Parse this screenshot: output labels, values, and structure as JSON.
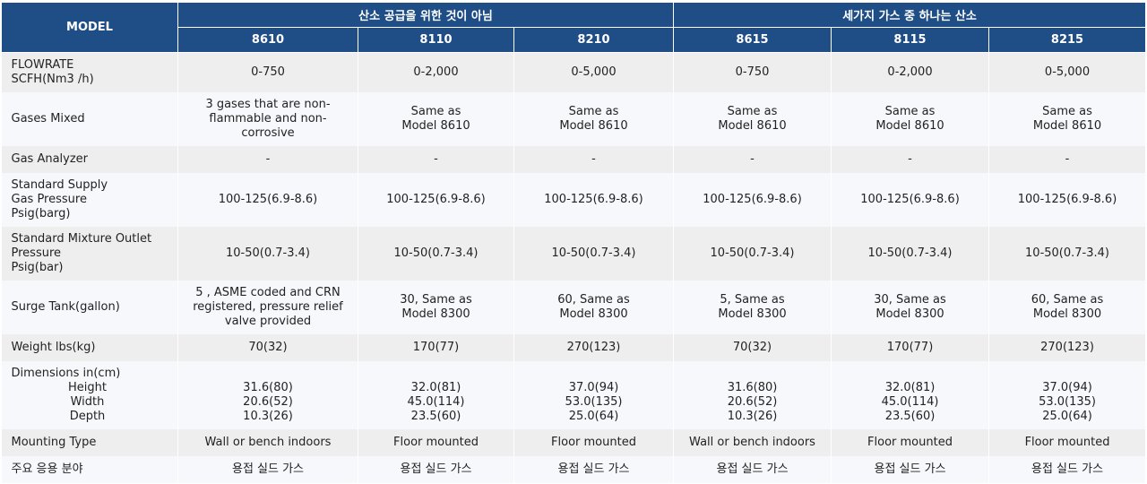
{
  "header": {
    "model_label": "MODEL",
    "groups": [
      "산소 공급을 위한 것이 아님",
      "세가지 가스 중 하나는 산소"
    ],
    "models": [
      "8610",
      "8110",
      "8210",
      "8615",
      "8115",
      "8215"
    ]
  },
  "rows": [
    {
      "label": "FLOWRATE\nSCFH(Nm3 /h)",
      "values": [
        "0-750",
        "0-2,000",
        "0-5,000",
        "0-750",
        "0-2,000",
        "0-5,000"
      ]
    },
    {
      "label": "Gases Mixed",
      "values": [
        "3 gases that are non-\nflammable and non-\ncorrosive",
        "Same as\nModel 8610",
        "Same as\nModel 8610",
        "Same as\nModel 8610",
        "Same as\nModel 8610",
        "Same as\nModel 8610"
      ]
    },
    {
      "label": "Gas Analyzer",
      "values": [
        "-",
        "-",
        "-",
        "-",
        "-",
        "-"
      ]
    },
    {
      "label": "Standard Supply\nGas Pressure\nPsig(barg)",
      "values": [
        "100-125(6.9-8.6)",
        "100-125(6.9-8.6)",
        "100-125(6.9-8.6)",
        "100-125(6.9-8.6)",
        "100-125(6.9-8.6)",
        "100-125(6.9-8.6)"
      ]
    },
    {
      "label": "Standard Mixture Outlet\nPressure\nPsig(bar)",
      "values": [
        "10-50(0.7-3.4)",
        "10-50(0.7-3.4)",
        "10-50(0.7-3.4)",
        "10-50(0.7-3.4)",
        "10-50(0.7-3.4)",
        "10-50(0.7-3.4)"
      ]
    },
    {
      "label": "Surge Tank(gallon)",
      "values": [
        "5 , ASME coded and CRN\nregistered, pressure relief\nvalve provided",
        "30, Same as\nModel 8300",
        "60, Same as\nModel 8300",
        "5, Same as\nModel 8300\n",
        "30, Same as\nModel 8300",
        "60, Same as\nModel 8300"
      ]
    },
    {
      "label": "Weight lbs(kg)",
      "values": [
        "70(32)",
        "170(77)",
        "270(123)",
        "70(32)",
        "170(77)",
        "270(123)"
      ]
    },
    {
      "label": "Dimensions in(cm)",
      "sublabels": [
        "Height",
        "Width",
        "Depth"
      ],
      "values": [
        "\n31.6(80)\n20.6(52)\n10.3(26)",
        "\n32.0(81)\n45.0(114)\n23.5(60)",
        "\n37.0(94)\n53.0(135)\n25.0(64)",
        "\n31.6(80)\n20.6(52)\n10.3(26)",
        "\n32.0(81)\n45.0(114)\n23.5(60)",
        "\n37.0(94)\n53.0(135)\n25.0(64)"
      ]
    },
    {
      "label": "Mounting Type",
      "values": [
        "Wall or bench indoors",
        "Floor mounted",
        "Floor mounted",
        "Wall or bench indoors",
        "Floor mounted",
        "Floor mounted"
      ]
    },
    {
      "label": "주요 응용 분야",
      "values": [
        "용접 실드 가스",
        "용접 실드 가스",
        "용접 실드 가스",
        "용접 실드 가스",
        "용접 실드 가스",
        "용접 실드 가스"
      ]
    }
  ]
}
